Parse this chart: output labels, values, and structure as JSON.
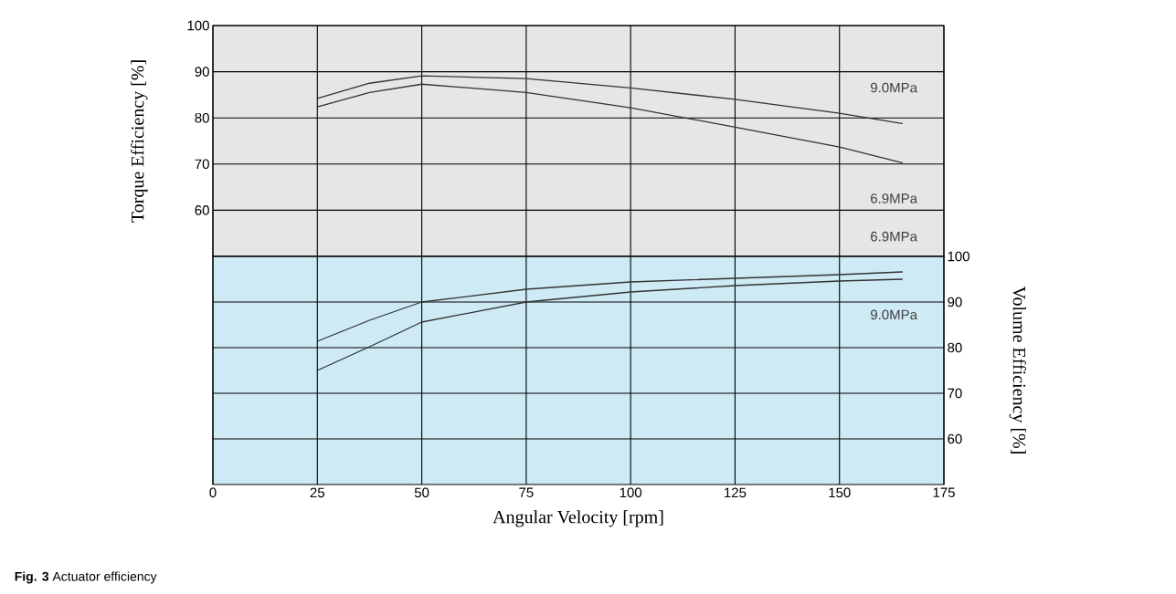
{
  "chart_data": [
    {
      "type": "line",
      "ylabel": "Torque Efficiency [%]",
      "xlim": [
        0,
        175
      ],
      "xticks": [
        0,
        25,
        50,
        75,
        100,
        125,
        150,
        175
      ],
      "ylim": [
        50,
        100
      ],
      "yticks": [
        60,
        70,
        80,
        90,
        100
      ],
      "grid": true,
      "tick_labels": "y",
      "series": [
        {
          "name": "9.0MPa",
          "color": "#333333",
          "x": [
            25,
            37.5,
            50,
            75,
            100,
            125,
            150,
            165
          ],
          "values": [
            84.2,
            87.5,
            89.1,
            88.5,
            86.5,
            84,
            81,
            78.8
          ]
        },
        {
          "name": "6.9MPa",
          "color": "#333333",
          "x": [
            25,
            37.5,
            50,
            75,
            100,
            125,
            150,
            165
          ],
          "values": [
            82.4,
            85.5,
            87.3,
            85.5,
            82.2,
            78,
            73.7,
            70.3
          ]
        }
      ]
    },
    {
      "type": "line",
      "xlabel": "Angular Velocity [rpm]",
      "y2label": "Volume Efficiency [%]",
      "xlim": [
        0,
        175
      ],
      "xticks": [
        0,
        25,
        50,
        75,
        100,
        125,
        150,
        175
      ],
      "y2lim": [
        50,
        100
      ],
      "y2ticks": [
        60,
        70,
        80,
        90,
        100
      ],
      "grid": true,
      "annotations": [
        "**Fig. 3** Actuator efficiency"
      ],
      "series": [
        {
          "name": "6.9MPa",
          "color": "#333333",
          "axis": "y2",
          "x": [
            25,
            37.5,
            50,
            75,
            100,
            125,
            150,
            165
          ],
          "values": [
            81.4,
            86,
            90,
            92.8,
            94.4,
            95.2,
            96,
            96.6
          ]
        },
        {
          "name": "9.0MPa",
          "color": "#333333",
          "axis": "y2",
          "x": [
            25,
            37.5,
            50,
            75,
            100,
            125,
            150,
            165
          ],
          "values": [
            75,
            80.2,
            85.6,
            90,
            92.2,
            93.6,
            94.6,
            95
          ]
        }
      ]
    }
  ]
}
